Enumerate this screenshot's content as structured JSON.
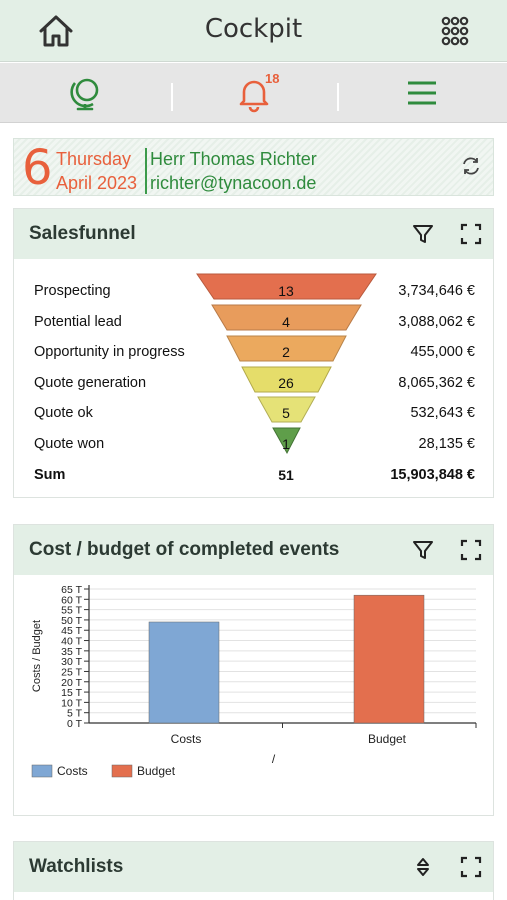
{
  "header": {
    "title": "Cockpit"
  },
  "nav": {
    "badge_count": "18"
  },
  "datebar": {
    "day": "6",
    "weekday": "Thursday",
    "month_year": "April 2023",
    "user": "Herr Thomas Richter",
    "email": "richter@tynacoon.de"
  },
  "salesfunnel": {
    "title": "Salesfunnel",
    "rows": [
      {
        "label": "Prospecting",
        "count": "13",
        "amount": "3,734,646 €",
        "color": "#e36f4e"
      },
      {
        "label": "Potential lead",
        "count": "4",
        "amount": "3,088,062 €",
        "color": "#e89c5c"
      },
      {
        "label": "Opportunity in progress",
        "count": "2",
        "amount": "455,000 €",
        "color": "#eba95e"
      },
      {
        "label": "Quote generation",
        "count": "26",
        "amount": "8,065,362 €",
        "color": "#e5dd6a"
      },
      {
        "label": "Quote ok",
        "count": "5",
        "amount": "532,643 €",
        "color": "#e5e277"
      },
      {
        "label": "Quote won",
        "count": "1",
        "amount": "28,135 €",
        "color": "#5f9e4a"
      }
    ],
    "sum": {
      "label": "Sum",
      "count": "51",
      "amount": "15,903,848 €"
    }
  },
  "costbudget": {
    "title": "Cost / budget of completed events"
  },
  "watchlists": {
    "title": "Watchlists"
  },
  "chart_data": {
    "type": "bar",
    "categories": [
      "Costs",
      "Budget"
    ],
    "values": [
      49,
      62
    ],
    "colors": [
      "#7fa7d4",
      "#e36f4e"
    ],
    "ylabel": "Costs / Budget",
    "xlabel": "/",
    "ylim": [
      0,
      65
    ],
    "yticks": [
      "0 T",
      "5 T",
      "10 T",
      "15 T",
      "20 T",
      "25 T",
      "30 T",
      "35 T",
      "40 T",
      "45 T",
      "50 T",
      "55 T",
      "60 T",
      "65 T"
    ],
    "legend": [
      "Costs",
      "Budget"
    ],
    "legend_position": "bottom-left",
    "grid": true
  }
}
